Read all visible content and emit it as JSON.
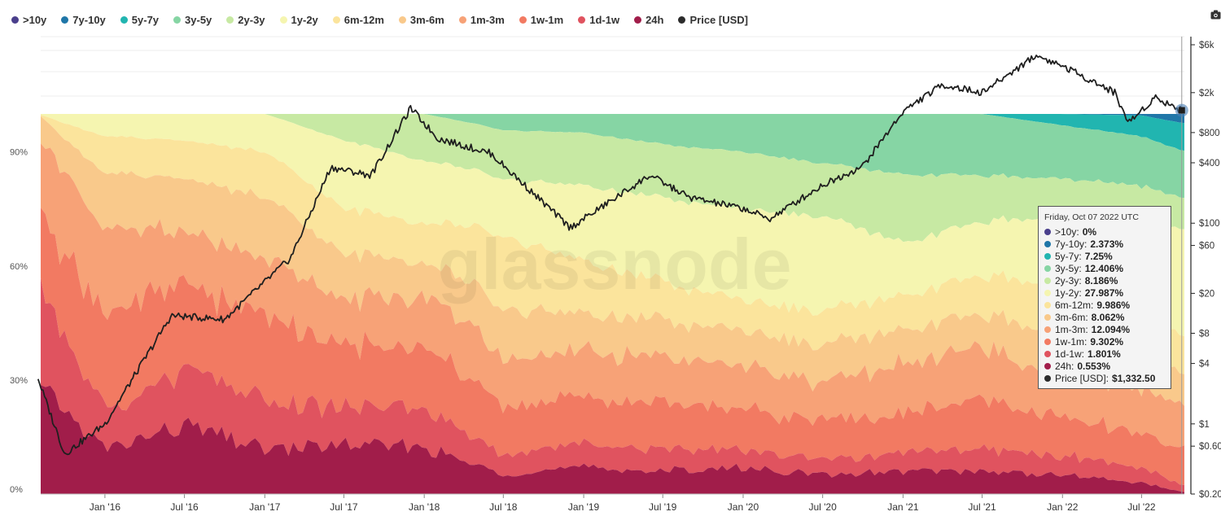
{
  "legend": [
    {
      "key": "gt10y",
      "label": ">10y",
      "color": "#4a3f8c"
    },
    {
      "key": "y7_10",
      "label": "7y-10y",
      "color": "#1f76a8"
    },
    {
      "key": "y5_7",
      "label": "5y-7y",
      "color": "#21b5b0"
    },
    {
      "key": "y3_5",
      "label": "3y-5y",
      "color": "#86d5a4"
    },
    {
      "key": "y2_3",
      "label": "2y-3y",
      "color": "#c7e9a3"
    },
    {
      "key": "y1_2",
      "label": "1y-2y",
      "color": "#f5f5b0"
    },
    {
      "key": "m6_12",
      "label": "6m-12m",
      "color": "#fbe49c"
    },
    {
      "key": "m3_6",
      "label": "3m-6m",
      "color": "#f9c98b"
    },
    {
      "key": "m1_3",
      "label": "1m-3m",
      "color": "#f7a277"
    },
    {
      "key": "w1_m1",
      "label": "1w-1m",
      "color": "#f27a62"
    },
    {
      "key": "d1_w1",
      "label": "1d-1w",
      "color": "#e0535f"
    },
    {
      "key": "h24",
      "label": "24h",
      "color": "#a11d4a"
    },
    {
      "key": "price",
      "label": "Price [USD]",
      "color": "#2b2b2b"
    }
  ],
  "watermark": "glassnode",
  "tooltip": {
    "date": "Friday, Oct 07 2022 UTC",
    "rows": [
      {
        "label": ">10y:",
        "value": "0%",
        "color": "#4a3f8c"
      },
      {
        "label": "7y-10y:",
        "value": "2.373%",
        "color": "#1f76a8"
      },
      {
        "label": "5y-7y:",
        "value": "7.25%",
        "color": "#21b5b0"
      },
      {
        "label": "3y-5y:",
        "value": "12.406%",
        "color": "#86d5a4"
      },
      {
        "label": "2y-3y:",
        "value": "8.186%",
        "color": "#c7e9a3"
      },
      {
        "label": "1y-2y:",
        "value": "27.987%",
        "color": "#f5f5b0"
      },
      {
        "label": "6m-12m:",
        "value": "9.986%",
        "color": "#fbe49c"
      },
      {
        "label": "3m-6m:",
        "value": "8.062%",
        "color": "#f9c98b"
      },
      {
        "label": "1m-3m:",
        "value": "12.094%",
        "color": "#f7a277"
      },
      {
        "label": "1w-1m:",
        "value": "9.302%",
        "color": "#f27a62"
      },
      {
        "label": "1d-1w:",
        "value": "1.801%",
        "color": "#e0535f"
      },
      {
        "label": "24h:",
        "value": "0.553%",
        "color": "#a11d4a"
      },
      {
        "label": "Price [USD]:",
        "value": "$1,332.50",
        "color": "#2b2b2b"
      }
    ]
  },
  "chart_data": {
    "type": "area",
    "stacked": true,
    "x_range": [
      "2015-08-07",
      "2022-10-07"
    ],
    "x_ticks": [
      "Jan '16",
      "Jul '16",
      "Jan '17",
      "Jul '17",
      "Jan '18",
      "Jul '18",
      "Jan '19",
      "Jul '19",
      "Jan '20",
      "Jul '20",
      "Jan '21",
      "Jul '21",
      "Jan '22",
      "Jul '22"
    ],
    "y_left_ticks": [
      "0%",
      "30%",
      "60%",
      "90%"
    ],
    "y_left_range": [
      0,
      100
    ],
    "y_right_scale": "log",
    "y_right_ticks": [
      "$0.20",
      "$0.60",
      "$1",
      "$4",
      "$8",
      "$20",
      "$60",
      "$100",
      "$400",
      "$800",
      "$2k",
      "$6k"
    ],
    "x": [
      "2015-08",
      "2016-01",
      "2016-07",
      "2017-01",
      "2017-07",
      "2018-01",
      "2018-07",
      "2019-01",
      "2019-07",
      "2020-01",
      "2020-07",
      "2021-01",
      "2021-07",
      "2022-01",
      "2022-07",
      "2022-10"
    ],
    "series": [
      {
        "name": "7y-10y",
        "values": [
          0,
          0,
          0,
          0,
          0,
          0,
          0,
          0,
          0,
          0,
          0,
          0,
          0,
          0,
          0.4,
          2.373
        ]
      },
      {
        "name": "5y-7y",
        "values": [
          0,
          0,
          0,
          0,
          0,
          0,
          0,
          0,
          0,
          0,
          0,
          0,
          0,
          3.0,
          5.5,
          7.25
        ]
      },
      {
        "name": "3y-5y",
        "values": [
          0,
          0,
          0,
          0,
          0,
          0,
          4,
          5,
          8,
          10,
          13,
          16,
          16,
          14,
          13,
          12.406
        ]
      },
      {
        "name": "2y-3y",
        "values": [
          0,
          0,
          0,
          0,
          7,
          12,
          12,
          14,
          14,
          15,
          14,
          18,
          12,
          10,
          10,
          8.186
        ]
      },
      {
        "name": "1y-2y",
        "values": [
          0,
          6,
          7,
          10,
          18,
          16,
          14,
          20,
          22,
          24,
          25,
          14,
          14,
          18,
          24,
          27.987
        ]
      },
      {
        "name": "6m-12m",
        "values": [
          0,
          10,
          10,
          12,
          12,
          10,
          18,
          14,
          10,
          8,
          9,
          9,
          10,
          13,
          10,
          9.986
        ]
      },
      {
        "name": "3m-6m",
        "values": [
          6,
          14,
          14,
          16,
          12,
          9,
          12,
          10,
          10,
          9,
          10,
          9,
          9,
          12,
          9,
          8.062
        ]
      },
      {
        "name": "1m-3m",
        "values": [
          20,
          22,
          14,
          16,
          12,
          14,
          12,
          12,
          12,
          11,
          10,
          13,
          14,
          10,
          12,
          12.094
        ]
      },
      {
        "name": "1w-1m",
        "values": [
          20,
          26,
          22,
          22,
          16,
          17,
          12,
          12,
          12,
          11,
          10,
          10,
          13,
          10,
          9,
          9.302
        ]
      },
      {
        "name": "1d-1w",
        "values": [
          26,
          10,
          15,
          12,
          10,
          10,
          5,
          6,
          6,
          5,
          4,
          5,
          6,
          5,
          4,
          1.801
        ]
      },
      {
        "name": "24h",
        "values": [
          28,
          12,
          18,
          12,
          13,
          12,
          5,
          7,
          6,
          7,
          5,
          6,
          6,
          5,
          3,
          0.553
        ]
      }
    ],
    "price": {
      "name": "Price [USD]",
      "x": [
        "2015-08",
        "2015-10",
        "2016-01",
        "2016-06",
        "2016-10",
        "2017-03",
        "2017-06",
        "2017-09",
        "2017-12",
        "2018-02",
        "2018-06",
        "2018-12",
        "2019-06",
        "2019-09",
        "2020-01",
        "2020-03",
        "2020-07",
        "2020-10",
        "2021-01",
        "2021-04",
        "2021-07",
        "2021-11",
        "2022-01",
        "2022-05",
        "2022-06",
        "2022-08",
        "2022-10"
      ],
      "values": [
        2.8,
        0.5,
        1.0,
        12,
        11,
        45,
        360,
        300,
        1400,
        700,
        500,
        90,
        300,
        180,
        140,
        110,
        240,
        370,
        1300,
        2400,
        2000,
        4700,
        3700,
        2000,
        1000,
        1800,
        1332.5
      ]
    }
  }
}
